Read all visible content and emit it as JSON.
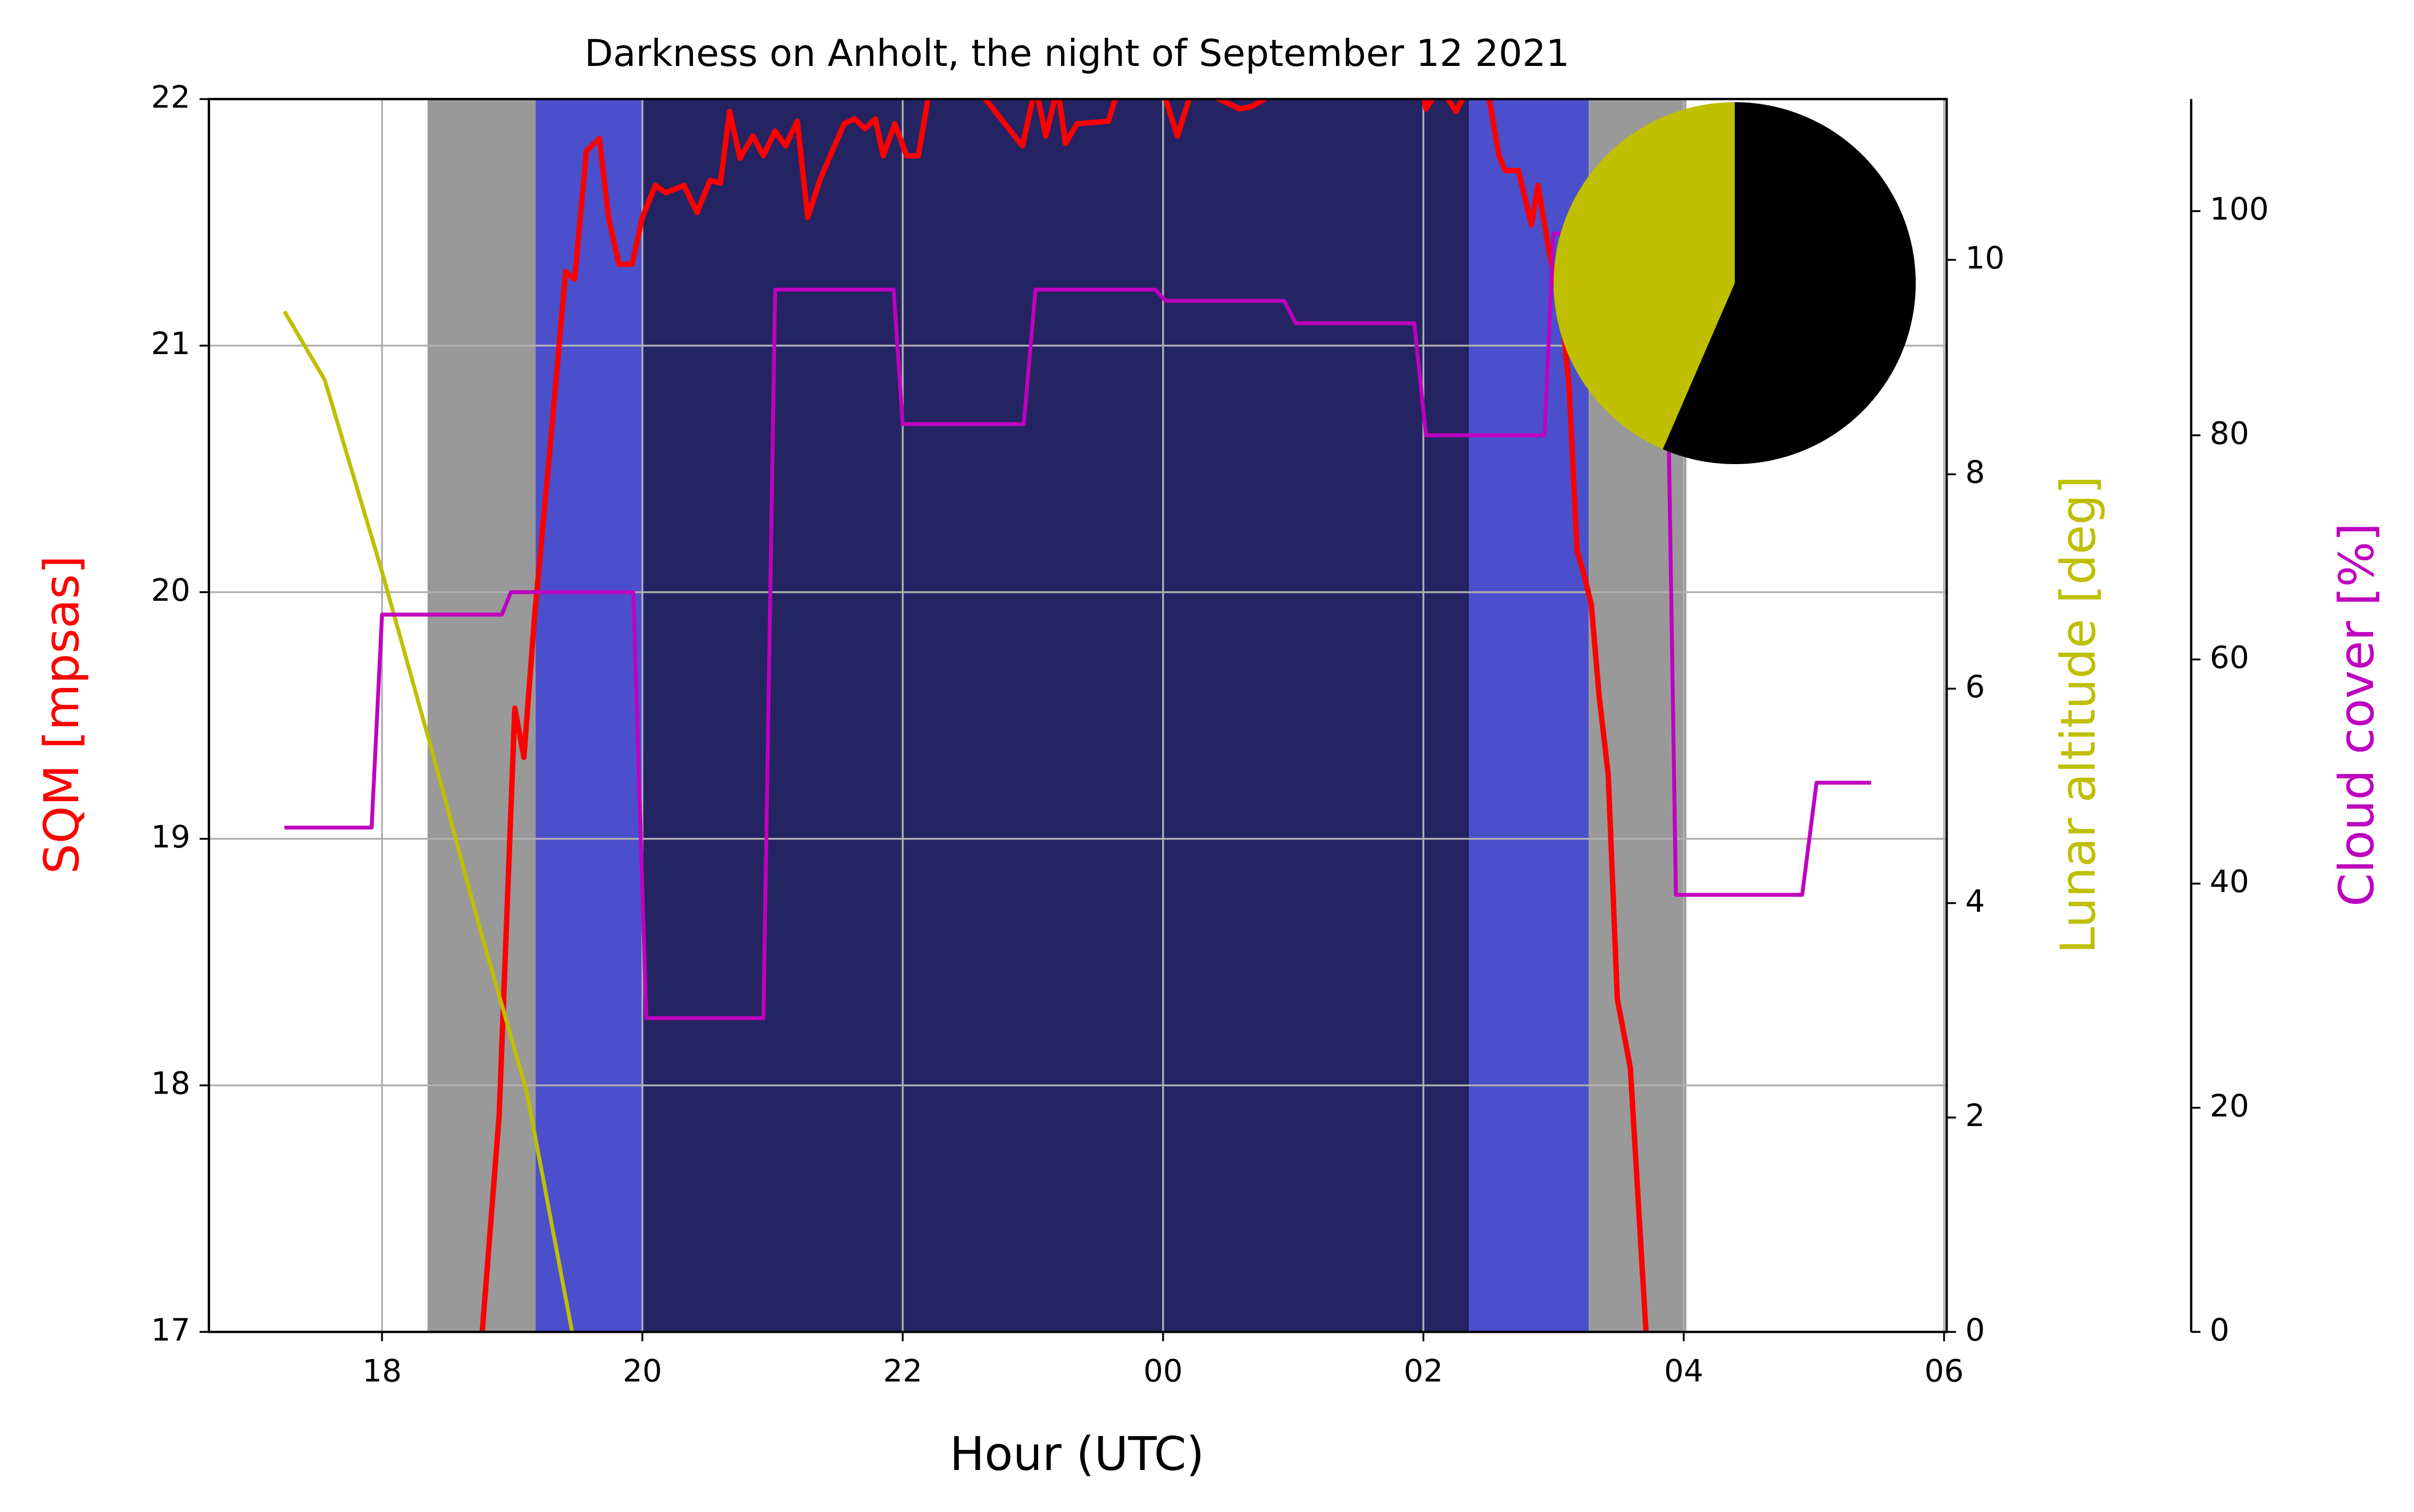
{
  "chart_data": {
    "type": "line",
    "title": "Darkness on Anholt, the night of September 12 2021",
    "xlabel": "Hour (UTC)",
    "ylabel": "SQM [mpsas]",
    "y2label": "Lunar altitude [deg]",
    "y3label": "Cloud cover [%]",
    "xlim": [
      16.67,
      30.02
    ],
    "xticks": [
      18,
      20,
      22,
      {
        "value": 24,
        "label": "00"
      },
      {
        "value": 26,
        "label": "02"
      },
      {
        "value": 28,
        "label": "04"
      },
      {
        "value": 30,
        "label": "06"
      }
    ],
    "ylim": [
      17,
      22
    ],
    "yticks": [
      17,
      18,
      19,
      20,
      21,
      22
    ],
    "y2lim": [
      0,
      11.5
    ],
    "y2ticks": [
      0,
      2,
      4,
      6,
      8,
      10
    ],
    "y3lim": [
      0,
      110
    ],
    "y3ticks": [
      0,
      20,
      40,
      60,
      80,
      100
    ],
    "grid": true,
    "bands": [
      {
        "start": 18.35,
        "end": 19.18,
        "color": "#999999"
      },
      {
        "start": 19.18,
        "end": 20.0,
        "color": "#4b4fcb"
      },
      {
        "start": 20.0,
        "end": 26.35,
        "color": "#252463"
      },
      {
        "start": 26.35,
        "end": 27.27,
        "color": "#4b4fcb"
      },
      {
        "start": 27.27,
        "end": 28.02,
        "color": "#999999"
      }
    ],
    "series": [
      {
        "color": "#ff0000",
        "axis": "y",
        "x": [
          18.77,
          18.9,
          19.02,
          19.09,
          19.17,
          19.29,
          19.41,
          19.48,
          19.57,
          19.67,
          19.74,
          19.82,
          19.92,
          20.0,
          20.1,
          20.18,
          20.32,
          20.42,
          20.52,
          20.6,
          20.67,
          20.75,
          20.85,
          20.93,
          21.02,
          21.1,
          21.19,
          21.27,
          21.37,
          21.55,
          21.63,
          21.71,
          21.79,
          21.85,
          21.94,
          22.03,
          22.12,
          22.21,
          22.33,
          22.56,
          22.92,
          23.02,
          23.1,
          23.19,
          23.25,
          23.34,
          23.58,
          23.66,
          23.99,
          24.11,
          24.23,
          24.59,
          24.68,
          24.94,
          25.99,
          26.02,
          26.13,
          26.25,
          26.35,
          26.49,
          26.58,
          26.63,
          26.73,
          26.83,
          26.88,
          26.97,
          27.06,
          27.12,
          27.18,
          27.23,
          27.29,
          27.35,
          27.42,
          27.49,
          27.59,
          27.71
        ],
        "values": [
          17.0,
          17.88,
          19.53,
          19.33,
          19.89,
          20.58,
          21.3,
          21.27,
          21.79,
          21.84,
          21.52,
          21.33,
          21.33,
          21.52,
          21.65,
          21.62,
          21.65,
          21.54,
          21.67,
          21.66,
          21.95,
          21.76,
          21.85,
          21.77,
          21.87,
          21.81,
          21.91,
          21.52,
          21.68,
          21.9,
          21.92,
          21.88,
          21.92,
          21.77,
          21.9,
          21.77,
          21.77,
          22.05,
          22.05,
          22.05,
          21.81,
          22.05,
          21.85,
          22.05,
          21.82,
          21.9,
          21.91,
          22.05,
          22.05,
          21.85,
          22.05,
          21.96,
          21.97,
          22.05,
          22.05,
          21.96,
          22.05,
          21.95,
          22.05,
          22.05,
          21.77,
          21.71,
          21.71,
          21.49,
          21.65,
          21.37,
          21.15,
          20.83,
          20.17,
          20.08,
          19.95,
          19.58,
          19.26,
          18.35,
          18.07,
          17.0
        ],
        "width": 3.5
      },
      {
        "color": "#bfbf00",
        "axis": "y2",
        "x": [
          17.25,
          17.56,
          18.0,
          18.4,
          18.75,
          19.11,
          19.46
        ],
        "values": [
          9.52,
          8.88,
          7.09,
          5.35,
          3.77,
          2.25,
          0
        ],
        "width": 2.5
      },
      {
        "color": "#bf00bf",
        "axis": "y3",
        "x": [
          17.25,
          17.92,
          18.0,
          18.92,
          18.99,
          19.93,
          20.03,
          20.93,
          21.02,
          21.93,
          22.0,
          22.93,
          23.02,
          23.94,
          24.02,
          24.93,
          25.02,
          25.93,
          26.02,
          26.93,
          27.0,
          27.86,
          27.94,
          28.91,
          29.02,
          29.44
        ],
        "values": [
          45,
          45,
          64,
          64,
          66,
          66,
          28,
          28,
          93,
          93,
          81,
          81,
          93,
          93,
          92,
          92,
          90,
          90,
          80,
          80,
          98,
          98,
          39,
          39,
          49,
          49
        ],
        "width": 2.5
      }
    ],
    "inset": {
      "type": "pie",
      "values": [
        56.5,
        43.5
      ],
      "colors": [
        "#000000",
        "#bfbf00"
      ]
    }
  }
}
